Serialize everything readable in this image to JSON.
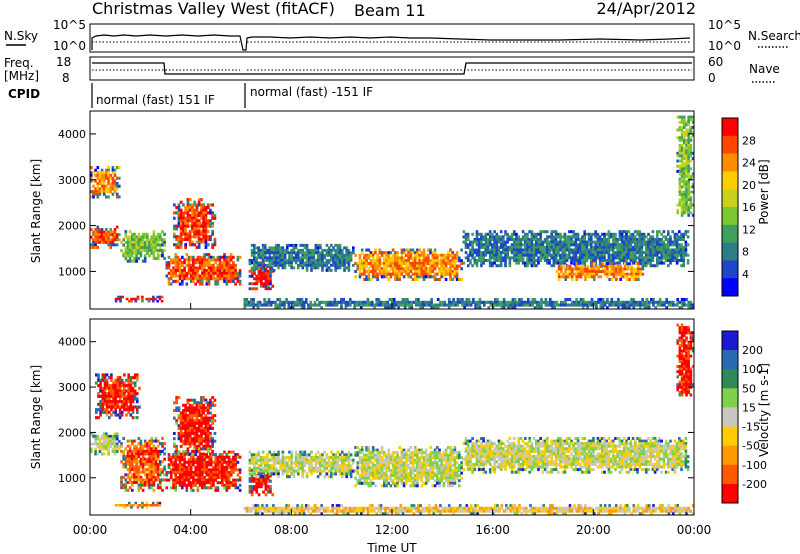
{
  "header": {
    "title": "Christmas Valley West (fitACF)",
    "beam": "Beam 11",
    "date": "24/Apr/2012"
  },
  "params": {
    "nsky_label": "N.Sky",
    "nsearch_label": "N.Search",
    "nsky_ticks": [
      "10^5",
      "10^0"
    ],
    "nsearch_ticks": [
      "10^5",
      "10^0"
    ],
    "freq_label_1": "Freq.",
    "freq_label_2": "[MHz]",
    "freq_ticks": [
      "18",
      "8"
    ],
    "nave_label": "Nave",
    "nave_ticks": [
      "60",
      "0"
    ],
    "cpid_label": "CPID",
    "cpid_segments": [
      {
        "label": "normal (fast) 151 IF",
        "start_h": 0.0,
        "end_h": 6.05
      },
      {
        "label": "normal (fast) -151 IF",
        "start_h": 6.05,
        "end_h": 24.0
      }
    ]
  },
  "chart_data": [
    {
      "type": "heatmap",
      "name": "power",
      "ylabel": "Slant Range [km]",
      "xlim": [
        0,
        24
      ],
      "ylim": [
        180,
        4500
      ],
      "yticks": [
        "1000",
        "2000",
        "3000",
        "4000"
      ],
      "colorbar_label": "Power [dB]",
      "colorbar_ticks": [
        "4",
        "8",
        "12",
        "16",
        "20",
        "24",
        "28"
      ],
      "colors": [
        "#0000ff",
        "#1e46c8",
        "#2d7d87",
        "#3fa05a",
        "#7dc832",
        "#c8d21e",
        "#ffcc00",
        "#ff8c00",
        "#ff4600",
        "#ff0000"
      ],
      "features": [
        {
          "t0": 0.0,
          "t1": 1.2,
          "r0": 1500,
          "r1": 2000,
          "level": 8
        },
        {
          "t0": 0.0,
          "t1": 1.2,
          "r0": 2600,
          "r1": 3300,
          "level": 7
        },
        {
          "t0": 1.2,
          "t1": 3.0,
          "r0": 1200,
          "r1": 1900,
          "level": 4
        },
        {
          "t0": 3.0,
          "t1": 6.0,
          "r0": 700,
          "r1": 1400,
          "level": 8
        },
        {
          "t0": 3.3,
          "t1": 5.0,
          "r0": 1500,
          "r1": 2600,
          "level": 8
        },
        {
          "t0": 6.3,
          "t1": 7.3,
          "r0": 600,
          "r1": 1200,
          "level": 9
        },
        {
          "t0": 6.3,
          "t1": 10.5,
          "r0": 1000,
          "r1": 1600,
          "level": 2
        },
        {
          "t0": 10.5,
          "t1": 14.8,
          "r0": 800,
          "r1": 1500,
          "level": 7
        },
        {
          "t0": 14.8,
          "t1": 23.8,
          "r0": 1100,
          "r1": 1900,
          "level": 2
        },
        {
          "t0": 18.5,
          "t1": 22.0,
          "r0": 800,
          "r1": 1200,
          "level": 7
        },
        {
          "t0": 0.9,
          "t1": 2.9,
          "r0": 330,
          "r1": 470,
          "level": 9
        },
        {
          "t0": 6.1,
          "t1": 24.0,
          "r0": 180,
          "r1": 420,
          "level": 2
        },
        {
          "t0": 23.3,
          "t1": 24.0,
          "r0": 2200,
          "r1": 4400,
          "level": 4
        }
      ]
    },
    {
      "type": "heatmap",
      "name": "velocity",
      "ylabel": "Slant Range [km]",
      "xlabel": "Time UT",
      "xlim": [
        0,
        24
      ],
      "ylim": [
        180,
        4500
      ],
      "yticks": [
        "1000",
        "2000",
        "3000",
        "4000"
      ],
      "xticks": [
        "00:00",
        "04:00",
        "08:00",
        "12:00",
        "16:00",
        "20:00",
        "00:00"
      ],
      "colorbar_label": "Velocity [m s-1]",
      "colorbar_ticks": [
        "200",
        "100",
        "50",
        "15",
        "-15",
        "-50",
        "-100",
        "-200"
      ],
      "colors": [
        "#1a1ad0",
        "#2a6ab0",
        "#2e8b57",
        "#7fd04a",
        "#c8c8c0",
        "#ffcc00",
        "#ff9900",
        "#ff5a00",
        "#ff0000"
      ],
      "features": [
        {
          "t0": 0.0,
          "t1": 1.2,
          "r0": 1500,
          "r1": 2000,
          "level": 4
        },
        {
          "t0": 0.2,
          "t1": 2.0,
          "r0": 2300,
          "r1": 3300,
          "level": 8
        },
        {
          "t0": 1.2,
          "t1": 3.0,
          "r0": 700,
          "r1": 1900,
          "level": 7
        },
        {
          "t0": 3.0,
          "t1": 6.0,
          "r0": 700,
          "r1": 1600,
          "level": 8
        },
        {
          "t0": 3.3,
          "t1": 5.0,
          "r0": 1500,
          "r1": 2800,
          "level": 8
        },
        {
          "t0": 6.3,
          "t1": 7.3,
          "r0": 600,
          "r1": 1200,
          "level": 8
        },
        {
          "t0": 6.3,
          "t1": 10.5,
          "r0": 1000,
          "r1": 1600,
          "level": 4
        },
        {
          "t0": 10.5,
          "t1": 14.8,
          "r0": 800,
          "r1": 1700,
          "level": 4
        },
        {
          "t0": 14.8,
          "t1": 23.8,
          "r0": 1100,
          "r1": 1900,
          "level": 4
        },
        {
          "t0": 0.9,
          "t1": 2.9,
          "r0": 330,
          "r1": 470,
          "level": 6
        },
        {
          "t0": 6.1,
          "t1": 24.0,
          "r0": 180,
          "r1": 420,
          "level": 5
        },
        {
          "t0": 23.3,
          "t1": 24.0,
          "r0": 2800,
          "r1": 4400,
          "level": 8
        }
      ]
    }
  ]
}
